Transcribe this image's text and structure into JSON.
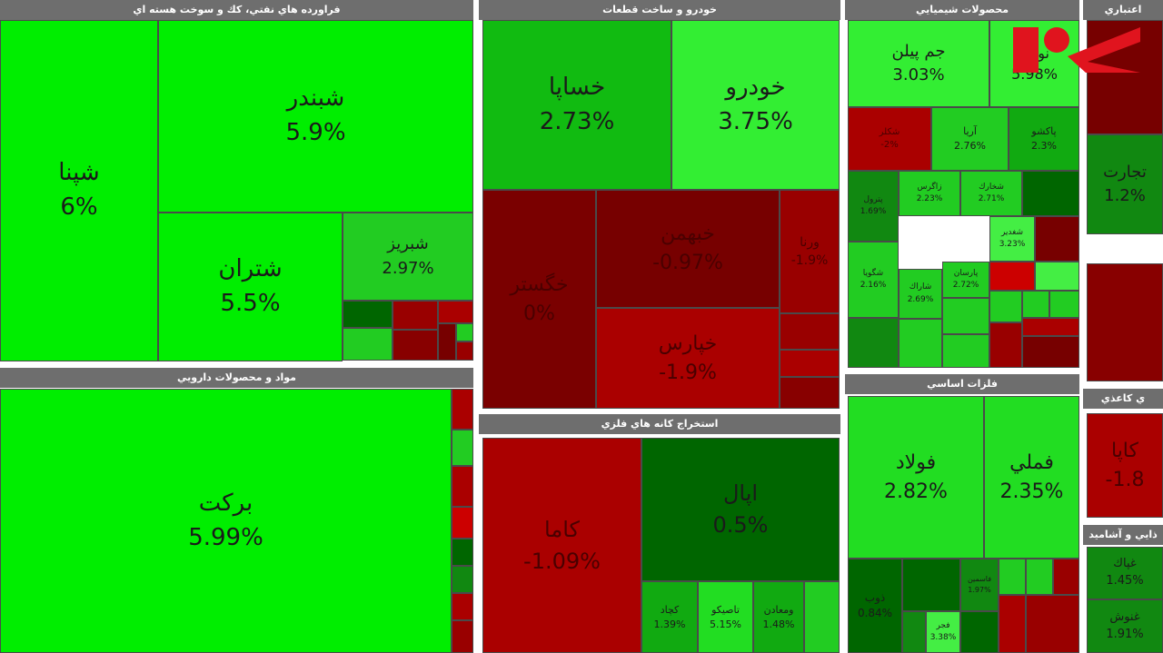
{
  "sectors": [
    {
      "title": "فراورده هاي نفتي، كك و سوخت هسته اي",
      "tiles": [
        {
          "name": "شپنا",
          "change": "6%"
        },
        {
          "name": "شبندر",
          "change": "5.9%"
        },
        {
          "name": "شتران",
          "change": "5.5%"
        },
        {
          "name": "شبريز",
          "change": "2.97%"
        }
      ]
    },
    {
      "title": "مواد و محصولات دارويي",
      "tiles": [
        {
          "name": "بركت",
          "change": "5.99%"
        }
      ]
    },
    {
      "title": "خودرو و ساخت قطعات",
      "tiles": [
        {
          "name": "خساپا",
          "change": "2.73%"
        },
        {
          "name": "خودرو",
          "change": "3.75%"
        },
        {
          "name": "خگستر",
          "change": "0%"
        },
        {
          "name": "خبهمن",
          "change": "-0.97%"
        },
        {
          "name": "ورنا",
          "change": "-1.9%"
        },
        {
          "name": "خپارس",
          "change": "-1.9%"
        }
      ]
    },
    {
      "title": "استخراج كانه هاي فلزي",
      "tiles": [
        {
          "name": "كاما",
          "change": "-1.09%"
        },
        {
          "name": "اپال",
          "change": "0.5%"
        },
        {
          "name": "كچاد",
          "change": "1.39%"
        },
        {
          "name": "تاصيكو",
          "change": "5.15%"
        },
        {
          "name": "ومعادن",
          "change": "1.48%"
        }
      ]
    },
    {
      "title": "محصولات شيميايي",
      "tiles": [
        {
          "name": "جم پيلن",
          "change": "3.03%"
        },
        {
          "name": "نوري",
          "change": "5.98%"
        },
        {
          "name": "شكلر",
          "change": "-2%"
        },
        {
          "name": "آريا",
          "change": "2.76%"
        },
        {
          "name": "پاكشو",
          "change": "2.3%"
        },
        {
          "name": "پترول",
          "change": "1.69%"
        },
        {
          "name": "زاگرس",
          "change": "2.23%"
        },
        {
          "name": "شخارك",
          "change": "2.71%"
        },
        {
          "name": "شگويا",
          "change": "2.16%"
        },
        {
          "name": "شغدير",
          "change": "3.23%"
        },
        {
          "name": "شاراك",
          "change": "2.69%"
        },
        {
          "name": "پارسان",
          "change": "2.72%"
        }
      ]
    },
    {
      "title": "فلزات اساسي",
      "tiles": [
        {
          "name": "فولاد",
          "change": "2.82%"
        },
        {
          "name": "فملي",
          "change": "2.35%"
        },
        {
          "name": "ذوب",
          "change": "0.84%"
        },
        {
          "name": "فجر",
          "change": "3.38%"
        },
        {
          "name": "فاسمين",
          "change": "1.97%"
        }
      ]
    },
    {
      "title": "اعتباري",
      "tiles": [
        {
          "name": "تجارت",
          "change": "1.2%"
        }
      ]
    },
    {
      "title": "ي كاعذي",
      "tiles": [
        {
          "name": "كاپا",
          "change": "-1.8"
        }
      ]
    },
    {
      "title": "ذايي و آشاميد",
      "tiles": [
        {
          "name": "غپاك",
          "change": "1.45%"
        },
        {
          "name": "غنوش",
          "change": "1.91%"
        }
      ]
    }
  ]
}
